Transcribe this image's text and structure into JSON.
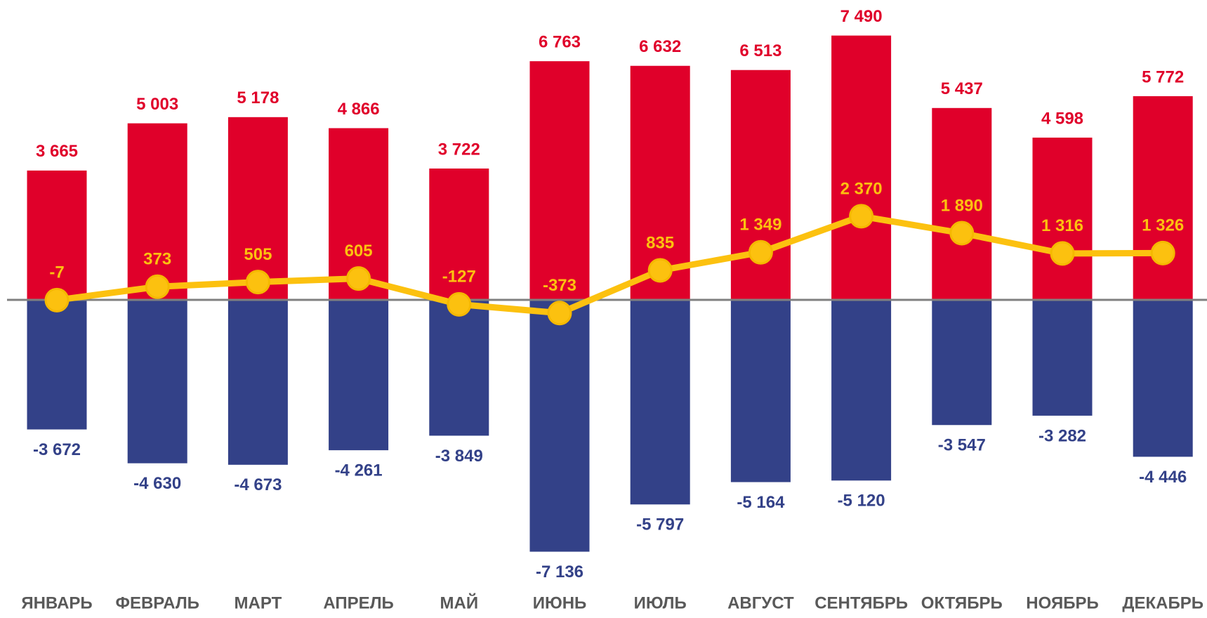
{
  "chart_data": {
    "type": "bar",
    "categories": [
      "ЯНВАРЬ",
      "ФЕВРАЛЬ",
      "МАРТ",
      "АПРЕЛЬ",
      "МАЙ",
      "ИЮНЬ",
      "ИЮЛЬ",
      "АВГУСТ",
      "СЕНТЯБРЬ",
      "ОКТЯБРЬ",
      "НОЯБРЬ",
      "ДЕКАБРЬ"
    ],
    "ylim": [
      -8000,
      8000
    ],
    "series": [
      {
        "type": "bar",
        "color": "#e0002a",
        "values": [
          3665,
          5003,
          5178,
          4866,
          3722,
          6763,
          6632,
          6513,
          7490,
          5437,
          4598,
          5772
        ],
        "value_labels": [
          "3 665",
          "5 003",
          "5 178",
          "4 866",
          "3 722",
          "6 763",
          "6 632",
          "6 513",
          "7 490",
          "5 437",
          "4 598",
          "5 772"
        ]
      },
      {
        "type": "bar",
        "color": "#334188",
        "values": [
          -3672,
          -4630,
          -4673,
          -4261,
          -3849,
          -7136,
          -5797,
          -5164,
          -5120,
          -3547,
          -3282,
          -4446
        ],
        "value_labels": [
          "-3 672",
          "-4 630",
          "-4 673",
          "-4 261",
          "-3 849",
          "-7 136",
          "-5 797",
          "-5 164",
          "-5 120",
          "-3 547",
          "-3 282",
          "-4 446"
        ]
      },
      {
        "type": "line",
        "color": "#fcc10f",
        "values": [
          -7,
          373,
          505,
          605,
          -127,
          -373,
          835,
          1349,
          2370,
          1890,
          1316,
          1326
        ],
        "value_labels": [
          "-7",
          "373",
          "505",
          "605",
          "-127",
          "-373",
          "835",
          "1 349",
          "2 370",
          "1 890",
          "1 316",
          "1 326"
        ]
      }
    ]
  }
}
